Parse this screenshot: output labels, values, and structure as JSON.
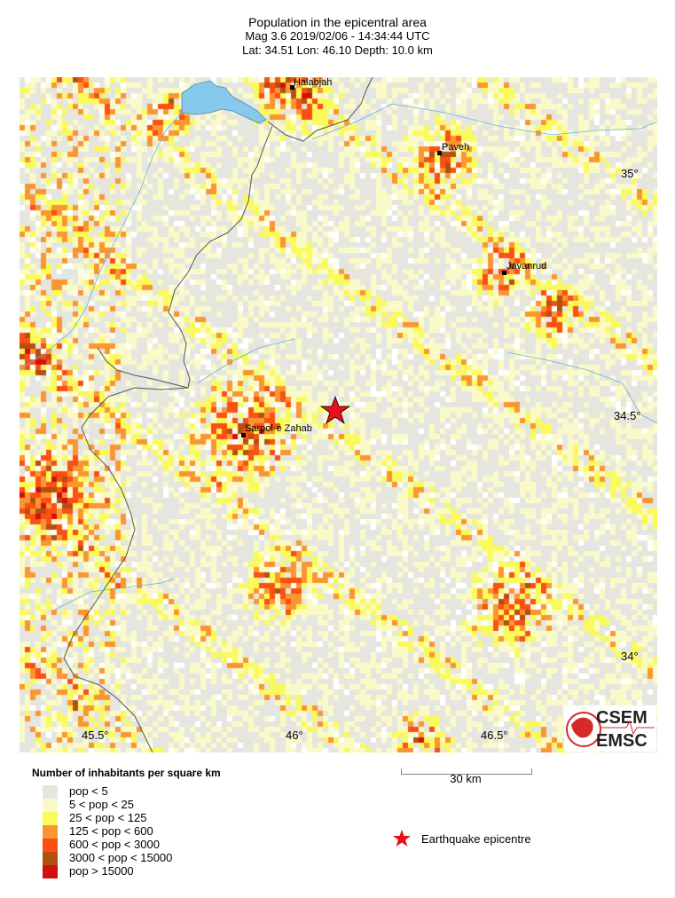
{
  "header": {
    "title": "Population in the epicentral area",
    "event": "Mag 3.6  2019/02/06 - 14:34:44 UTC",
    "location": "Lat: 34.51    Lon:  46.10      Depth:  10.0 km"
  },
  "map": {
    "cities": [
      {
        "name": "Halabjah"
      },
      {
        "name": "Paveh"
      },
      {
        "name": "Javanrud"
      },
      {
        "name": "Sarpol-e Zahab"
      }
    ],
    "lat_labels": [
      "35°",
      "34.5°",
      "34°"
    ],
    "lon_labels": [
      "45.5°",
      "46°",
      "46.5°"
    ],
    "epicentre_color": "#e8101a",
    "water_color": "#87c9ec",
    "logo": {
      "top": "CSEM",
      "bottom": "EMSC",
      "color": "#d42a2a"
    }
  },
  "legend": {
    "title": "Number of inhabitants per square km",
    "classes": [
      {
        "label": "pop < 5",
        "color": "#e6e6e0"
      },
      {
        "label": "5 < pop < 25",
        "color": "#fafac8"
      },
      {
        "label": "25 < pop < 125",
        "color": "#fafa5a"
      },
      {
        "label": "125 < pop < 600",
        "color": "#fa9632"
      },
      {
        "label": "600 < pop < 3000",
        "color": "#fa5014"
      },
      {
        "label": "3000 < pop < 15000",
        "color": "#b4500f"
      },
      {
        "label": "pop > 15000",
        "color": "#d20f0f"
      }
    ],
    "epicentre_label": "Earthquake epicentre"
  },
  "scale_bar": {
    "label": "30 km"
  }
}
